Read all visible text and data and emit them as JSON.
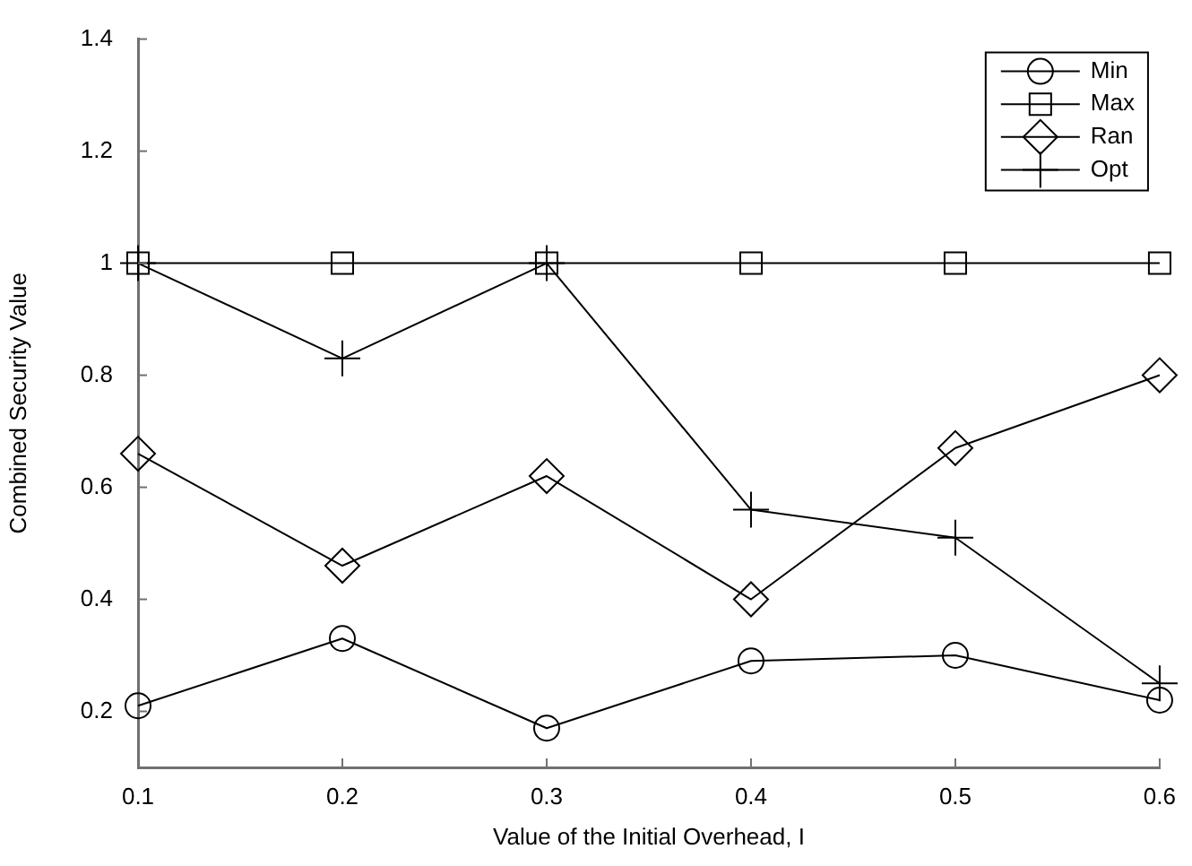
{
  "chart_data": {
    "type": "line",
    "xlabel": "Value of the Initial Overhead, I",
    "ylabel": "Combined Security Value",
    "x": [
      0.1,
      0.2,
      0.3,
      0.4,
      0.5,
      0.6
    ],
    "series": [
      {
        "name": "Min",
        "color": "#000000",
        "marker": "circle",
        "values": [
          0.21,
          0.33,
          0.17,
          0.29,
          0.3,
          0.22
        ]
      },
      {
        "name": "Max",
        "color": "#000000",
        "marker": "square",
        "values": [
          1,
          1,
          1,
          1,
          1,
          1
        ]
      },
      {
        "name": "Ran",
        "color": "#000000",
        "marker": "diamond",
        "values": [
          0.66,
          0.46,
          0.62,
          0.4,
          0.67,
          0.8
        ]
      },
      {
        "name": "Opt",
        "color": "#000000",
        "marker": "cross",
        "values": [
          1,
          0.83,
          1,
          0.56,
          0.51,
          0.25
        ]
      }
    ],
    "xlim": [
      0.1,
      0.6
    ],
    "ylim": [
      0.1,
      1.4
    ],
    "xticks": [
      0.1,
      0.2,
      0.3,
      0.4,
      0.5,
      0.6
    ],
    "yticks": [
      0.2,
      0.4,
      0.6,
      0.8,
      1,
      1.2,
      1.4
    ],
    "grid": false,
    "legend": "top right",
    "line_style": "solid"
  }
}
